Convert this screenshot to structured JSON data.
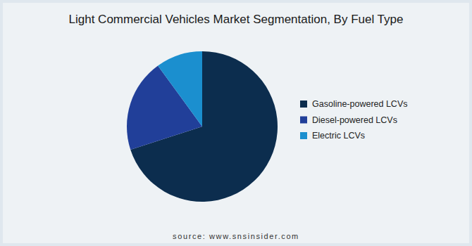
{
  "chart_data": {
    "type": "pie",
    "title": "Light Commercial Vehicles Market Segmentation, By Fuel Type",
    "categories": [
      "Gasoline-powered LCVs",
      "Diesel-powered LCVs",
      "Electric LCVs"
    ],
    "values": [
      70,
      20,
      10
    ],
    "colors": [
      "#0c2d4e",
      "#213f99",
      "#1b8fcf"
    ],
    "legend": "right",
    "source": "source: www.snsinsider.com"
  }
}
